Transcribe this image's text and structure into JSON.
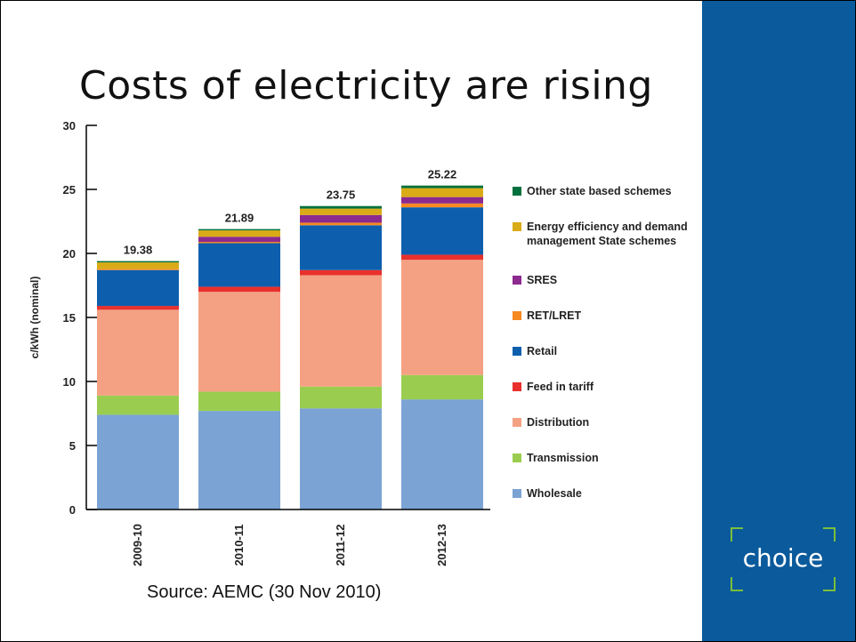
{
  "slide": {
    "title": "Costs of electricity are rising",
    "source": "Source: AEMC (30 Nov 2010)",
    "logo_text": "choice"
  },
  "colors": {
    "side_band": "#0a5a9c",
    "logo_bracket": "#7bbf3a"
  },
  "chart_data": {
    "type": "bar",
    "stacked": true,
    "categories": [
      "2009-10",
      "2010-11",
      "2011-12",
      "2012-13"
    ],
    "totals": [
      "19.38",
      "21.89",
      "23.75",
      "25.22"
    ],
    "ylabel": "c/kWh (nominal)",
    "ylim": [
      0,
      30
    ],
    "yticks": [
      0,
      5,
      10,
      15,
      20,
      25,
      30
    ],
    "grid": false,
    "legend_position": "right",
    "series": [
      {
        "name": "Wholesale",
        "color": "#7ba3d4",
        "values": [
          7.4,
          7.7,
          7.9,
          8.6
        ]
      },
      {
        "name": "Transmission",
        "color": "#9acd4f",
        "values": [
          1.5,
          1.5,
          1.7,
          1.9
        ]
      },
      {
        "name": "Distribution",
        "color": "#f4a183",
        "values": [
          6.7,
          7.8,
          8.7,
          9.0
        ]
      },
      {
        "name": "Feed in tariff",
        "color": "#e8302c",
        "values": [
          0.3,
          0.4,
          0.4,
          0.4
        ]
      },
      {
        "name": "Retail",
        "color": "#0d5fae",
        "values": [
          2.8,
          3.4,
          3.5,
          3.7
        ]
      },
      {
        "name": "RET/LRET",
        "color": "#f6891f",
        "values": [
          0.1,
          0.1,
          0.2,
          0.3
        ]
      },
      {
        "name": "SRES",
        "color": "#8c2a8e",
        "values": [
          0.0,
          0.4,
          0.6,
          0.5
        ]
      },
      {
        "name": "Energy efficiency and demand management State schemes",
        "color": "#d9ab16",
        "values": [
          0.5,
          0.5,
          0.5,
          0.7
        ]
      },
      {
        "name": "Other state based schemes",
        "color": "#00703c",
        "values": [
          0.1,
          0.1,
          0.2,
          0.2
        ]
      }
    ]
  }
}
